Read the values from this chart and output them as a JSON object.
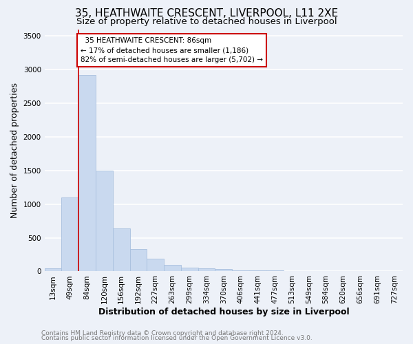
{
  "title": "35, HEATHWAITE CRESCENT, LIVERPOOL, L11 2XE",
  "subtitle": "Size of property relative to detached houses in Liverpool",
  "xlabel": "Distribution of detached houses by size in Liverpool",
  "ylabel": "Number of detached properties",
  "bar_labels": [
    "13sqm",
    "49sqm",
    "84sqm",
    "120sqm",
    "156sqm",
    "192sqm",
    "227sqm",
    "263sqm",
    "299sqm",
    "334sqm",
    "370sqm",
    "406sqm",
    "441sqm",
    "477sqm",
    "513sqm",
    "549sqm",
    "584sqm",
    "620sqm",
    "656sqm",
    "691sqm",
    "727sqm"
  ],
  "bar_values": [
    50,
    1100,
    2920,
    1500,
    640,
    330,
    190,
    100,
    60,
    50,
    40,
    20,
    15,
    10,
    5,
    3,
    2,
    1,
    1,
    1,
    1
  ],
  "bar_color": "#c9d9ef",
  "bar_edge_color": "#a8c0de",
  "marker_line_color": "#cc0000",
  "annotation_line1": "  35 HEATHWAITE CRESCENT: 86sqm",
  "annotation_line2": "← 17% of detached houses are smaller (1,186)",
  "annotation_line3": "82% of semi-detached houses are larger (5,702) →",
  "annotation_box_color": "#ffffff",
  "annotation_box_edge_color": "#cc0000",
  "ylim": [
    0,
    3600
  ],
  "yticks": [
    0,
    500,
    1000,
    1500,
    2000,
    2500,
    3000,
    3500
  ],
  "footer_line1": "Contains HM Land Registry data © Crown copyright and database right 2024.",
  "footer_line2": "Contains public sector information licensed under the Open Government Licence v3.0.",
  "background_color": "#edf1f8",
  "plot_bg_color": "#edf1f8",
  "grid_color": "#ffffff",
  "title_fontsize": 11,
  "subtitle_fontsize": 9.5,
  "axis_label_fontsize": 9,
  "tick_fontsize": 7.5,
  "footer_fontsize": 6.5
}
